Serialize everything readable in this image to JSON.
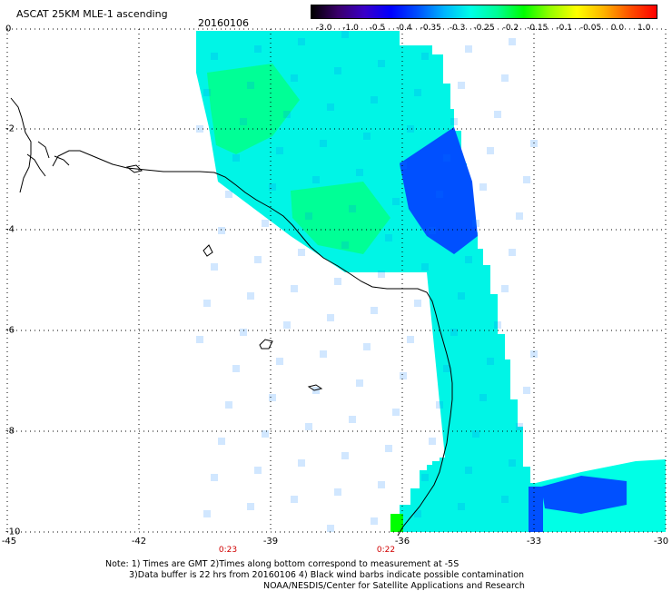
{
  "header": {
    "title": "ASCAT 25KM MLE-1 ascending",
    "date": "20160106"
  },
  "colorbar": {
    "labels": [
      "-3.0",
      "-1.0",
      "-0.5",
      "-0.4",
      "-0.35",
      "-0.3",
      "-0.25",
      "-0.2",
      "-0.15",
      "-0.1",
      "-0.05",
      "0.0",
      "1.0"
    ],
    "colors": [
      "#000000",
      "#3a006a",
      "#3a00c8",
      "#0000ff",
      "#0050ff",
      "#00b4ff",
      "#00ffe6",
      "#00ff96",
      "#00ff00",
      "#96ff00",
      "#ffff00",
      "#ffb400",
      "#ff5000",
      "#ff0000"
    ]
  },
  "axes": {
    "lat_labels": [
      "0",
      "-2",
      "-4",
      "-6",
      "-8",
      "-10"
    ],
    "lon_labels": [
      "-45",
      "-42",
      "-39",
      "-36",
      "-33",
      "-30"
    ]
  },
  "time_labels": [
    "0:23",
    "0:22"
  ],
  "notes": [
    "Note: 1) Times are GMT 2)Times along bottom correspond to measurement at -5S",
    "3)Data buffer is 22 hrs from 20160106 4) Black wind barbs indicate possible contamination",
    "NOAA/NESDIS/Center for Satellite Applications and Research"
  ]
}
